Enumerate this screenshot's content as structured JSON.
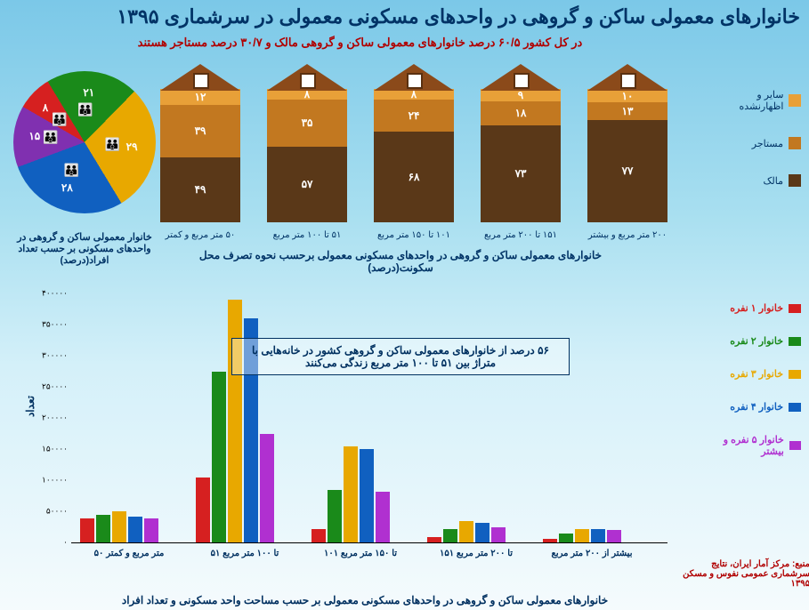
{
  "title": "خانوارهای معمولی ساکن و گروهی در واحدهای مسکونی معمولی در سرشماری ۱۳۹۵",
  "subtitle": "در کل کشور ۶۰/۵ درصد خانوارهای معمولی ساکن و گروهی مالک و ۳۰/۷ درصد مستاجر هستند",
  "houses": {
    "caption": "خانوارهای معمولی ساکن و گروهی در واحدهای مسکونی معمولی برحسب نحوه تصرف محل سکونت(درصد)",
    "colors": {
      "other": "#e8a038",
      "tenant": "#c27820",
      "owner": "#5a3818"
    },
    "legend": [
      {
        "label": "سایر و اظهارنشده",
        "color": "#e8a038"
      },
      {
        "label": "مستاجر",
        "color": "#c27820"
      },
      {
        "label": "مالک",
        "color": "#5a3818"
      }
    ],
    "bars": [
      {
        "label": "۵۰ متر مربع و کمتر",
        "other": 12,
        "tenant": 39,
        "owner": 49,
        "other_t": "۱۲",
        "tenant_t": "۳۹",
        "owner_t": "۴۹"
      },
      {
        "label": "۵۱ تا ۱۰۰ متر مربع",
        "other": 8,
        "tenant": 35,
        "owner": 57,
        "other_t": "۸",
        "tenant_t": "۳۵",
        "owner_t": "۵۷"
      },
      {
        "label": "۱۰۱ تا ۱۵۰ متر مربع",
        "other": 8,
        "tenant": 24,
        "owner": 68,
        "other_t": "۸",
        "tenant_t": "۲۴",
        "owner_t": "۶۸"
      },
      {
        "label": "۱۵۱ تا ۲۰۰ متر مربع",
        "other": 9,
        "tenant": 18,
        "owner": 73,
        "other_t": "۹",
        "tenant_t": "۱۸",
        "owner_t": "۷۳"
      },
      {
        "label": "۲۰۰ متر مربع و بیشتر",
        "other": 10,
        "tenant": 13,
        "owner": 77,
        "other_t": "۱۰",
        "tenant_t": "۱۳",
        "owner_t": "۷۷"
      }
    ]
  },
  "pie": {
    "caption": "خانوار معمولی ساکن و گروهی در واحدهای مسکونی بر حسب تعداد افراد(درصد)",
    "slices": [
      {
        "value": 8,
        "text": "۸",
        "color": "#d62020"
      },
      {
        "value": 21,
        "text": "۲۱",
        "color": "#1a8a1a"
      },
      {
        "value": 29,
        "text": "۲۹",
        "color": "#e8a800"
      },
      {
        "value": 28,
        "text": "۲۸",
        "color": "#1060c0"
      },
      {
        "value": 15,
        "text": "۱۵",
        "color": "#8030b0"
      }
    ]
  },
  "barchart": {
    "caption": "خانوارهای معمولی ساکن و گروهی در واحدهای مسکونی معمولی بر حسب مساحت واحد مسکونی و تعداد افراد",
    "y_title": "تعداد",
    "ymax": 400000,
    "ytick_step": 50000,
    "yticks": [
      "۰",
      "۵۰۰۰۰",
      "۱۰۰۰۰۰",
      "۱۵۰۰۰۰",
      "۲۰۰۰۰۰",
      "۲۵۰۰۰۰",
      "۳۰۰۰۰۰",
      "۳۵۰۰۰۰",
      "۴۰۰۰۰۰"
    ],
    "series": [
      {
        "label": "خانوار ۱ نفره",
        "color": "#d62020"
      },
      {
        "label": "خانوار ۲ نفره",
        "color": "#1a8a1a"
      },
      {
        "label": "خانوار ۳ نفره",
        "color": "#e8a800"
      },
      {
        "label": "خانوار ۴ نفره",
        "color": "#1060c0"
      },
      {
        "label": "خانوار ۵ نفره و بیشتر",
        "color": "#b030d0"
      }
    ],
    "groups": [
      {
        "label": "۵۰ متر مربع و کمتر",
        "values": [
          38000,
          45000,
          50000,
          42000,
          38000
        ]
      },
      {
        "label": "۵۱ تا ۱۰۰ متر مربع",
        "values": [
          105000,
          275000,
          390000,
          360000,
          175000
        ]
      },
      {
        "label": "۱۰۱ تا ۱۵۰ متر مربع",
        "values": [
          22000,
          85000,
          155000,
          150000,
          82000
        ]
      },
      {
        "label": "۱۵۱ تا ۲۰۰ متر مربع",
        "values": [
          8000,
          22000,
          35000,
          32000,
          25000
        ]
      },
      {
        "label": "بیشتر از ۲۰۰ متر مربع",
        "values": [
          6000,
          15000,
          22000,
          22000,
          20000
        ]
      }
    ],
    "annotation": "۵۶ درصد از خانوارهای معمولی ساکن و گروهی کشور در خانه‌هایی با متراژ بین ۵۱ تا ۱۰۰ متر مربع زندگی می‌کنند"
  },
  "source": "منبع: مرکز آمار ایران، نتایج سرشماری عمومی نفوس و مسکن ۱۳۹۵"
}
